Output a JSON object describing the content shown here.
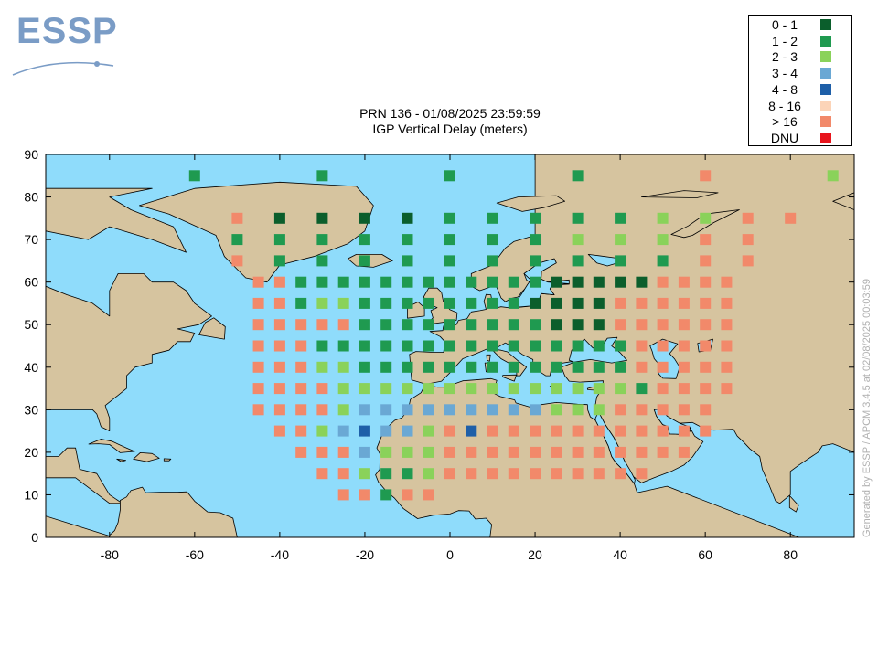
{
  "logo": {
    "text": "ESSP"
  },
  "title": "PRN 136 - 01/08/2025 23:59:59",
  "subtitle": "IGP Vertical Delay (meters)",
  "credit": "Generated by ESSP / APCM 3.4.5 at 02/08/2025 00:03:59",
  "colors": {
    "ocean": "#8fdcfb",
    "land": "#d6c49f",
    "cat1": "#0b5e2c",
    "cat2": "#1f9a50",
    "cat3": "#8ad25a",
    "cat4": "#6aa8d4",
    "cat5": "#1e5fa8",
    "cat6": "#fcd4b8",
    "cat7": "#f2896a",
    "cat8": "#e8141c"
  },
  "legend": [
    {
      "label": "0 - 1",
      "color": "#0b5e2c"
    },
    {
      "label": "1 - 2",
      "color": "#1f9a50"
    },
    {
      "label": "2 - 3",
      "color": "#8ad25a"
    },
    {
      "label": "3 - 4",
      "color": "#6aa8d4"
    },
    {
      "label": "4 - 8",
      "color": "#1e5fa8"
    },
    {
      "label": "8 - 16",
      "color": "#fcd4b8"
    },
    {
      "label": "> 16",
      "color": "#f2896a"
    },
    {
      "label": "DNU",
      "color": "#e8141c"
    }
  ],
  "chart_data": {
    "type": "scatter",
    "title": "PRN 136 - 01/08/2025 23:59:59",
    "subtitle": "IGP Vertical Delay (meters)",
    "xlim": [
      -95,
      95
    ],
    "ylim": [
      0,
      90
    ],
    "xticks": [
      -80,
      -60,
      -40,
      -20,
      0,
      20,
      40,
      60,
      80
    ],
    "yticks": [
      0,
      10,
      20,
      30,
      40,
      50,
      60,
      70,
      80,
      90
    ],
    "legend_position": "top-right",
    "rows": [
      {
        "lat": 85,
        "points": [
          [
            -60,
            2
          ],
          [
            -30,
            2
          ],
          [
            0,
            2
          ],
          [
            30,
            2
          ],
          [
            60,
            7
          ],
          [
            90,
            3
          ]
        ]
      },
      {
        "lat": 75,
        "points": [
          [
            -50,
            7
          ],
          [
            -40,
            1
          ],
          [
            -30,
            1
          ],
          [
            -20,
            1
          ],
          [
            -10,
            1
          ],
          [
            0,
            2
          ],
          [
            10,
            2
          ],
          [
            20,
            2
          ],
          [
            30,
            2
          ],
          [
            40,
            2
          ],
          [
            50,
            3
          ],
          [
            60,
            3
          ],
          [
            70,
            7
          ],
          [
            80,
            7
          ]
        ]
      },
      {
        "lat": 70,
        "points": [
          [
            -50,
            2
          ],
          [
            -40,
            2
          ],
          [
            -30,
            2
          ],
          [
            -20,
            2
          ],
          [
            -10,
            2
          ],
          [
            0,
            2
          ],
          [
            10,
            2
          ],
          [
            20,
            2
          ],
          [
            30,
            3
          ],
          [
            40,
            3
          ],
          [
            50,
            3
          ],
          [
            60,
            7
          ],
          [
            70,
            7
          ]
        ]
      },
      {
        "lat": 65,
        "points": [
          [
            -50,
            7
          ],
          [
            -40,
            2
          ],
          [
            -30,
            2
          ],
          [
            -20,
            2
          ],
          [
            -10,
            2
          ],
          [
            0,
            2
          ],
          [
            10,
            2
          ],
          [
            20,
            2
          ],
          [
            30,
            2
          ],
          [
            40,
            2
          ],
          [
            50,
            2
          ],
          [
            60,
            7
          ],
          [
            70,
            7
          ]
        ]
      },
      {
        "lat": 60,
        "points": [
          [
            -45,
            7
          ],
          [
            -40,
            7
          ],
          [
            -35,
            2
          ],
          [
            -30,
            2
          ],
          [
            -25,
            2
          ],
          [
            -20,
            2
          ],
          [
            -15,
            2
          ],
          [
            -10,
            2
          ],
          [
            -5,
            2
          ],
          [
            0,
            2
          ],
          [
            5,
            2
          ],
          [
            10,
            2
          ],
          [
            15,
            2
          ],
          [
            20,
            2
          ],
          [
            25,
            1
          ],
          [
            30,
            1
          ],
          [
            35,
            1
          ],
          [
            40,
            1
          ],
          [
            45,
            1
          ],
          [
            50,
            7
          ],
          [
            55,
            7
          ],
          [
            60,
            7
          ],
          [
            65,
            7
          ]
        ]
      },
      {
        "lat": 55,
        "points": [
          [
            -45,
            7
          ],
          [
            -40,
            7
          ],
          [
            -35,
            2
          ],
          [
            -30,
            3
          ],
          [
            -25,
            3
          ],
          [
            -20,
            2
          ],
          [
            -15,
            2
          ],
          [
            -10,
            2
          ],
          [
            -5,
            2
          ],
          [
            0,
            2
          ],
          [
            5,
            2
          ],
          [
            10,
            2
          ],
          [
            15,
            2
          ],
          [
            20,
            1
          ],
          [
            25,
            1
          ],
          [
            30,
            1
          ],
          [
            35,
            1
          ],
          [
            40,
            7
          ],
          [
            45,
            7
          ],
          [
            50,
            7
          ],
          [
            55,
            7
          ],
          [
            60,
            7
          ],
          [
            65,
            7
          ]
        ]
      },
      {
        "lat": 50,
        "points": [
          [
            -45,
            7
          ],
          [
            -40,
            7
          ],
          [
            -35,
            7
          ],
          [
            -30,
            7
          ],
          [
            -25,
            7
          ],
          [
            -20,
            2
          ],
          [
            -15,
            2
          ],
          [
            -10,
            2
          ],
          [
            -5,
            2
          ],
          [
            0,
            2
          ],
          [
            5,
            2
          ],
          [
            10,
            2
          ],
          [
            15,
            2
          ],
          [
            20,
            2
          ],
          [
            25,
            1
          ],
          [
            30,
            1
          ],
          [
            35,
            1
          ],
          [
            40,
            7
          ],
          [
            45,
            7
          ],
          [
            50,
            7
          ],
          [
            55,
            7
          ],
          [
            60,
            7
          ],
          [
            65,
            7
          ]
        ]
      },
      {
        "lat": 45,
        "points": [
          [
            -45,
            7
          ],
          [
            -40,
            7
          ],
          [
            -35,
            7
          ],
          [
            -30,
            2
          ],
          [
            -25,
            2
          ],
          [
            -20,
            2
          ],
          [
            -15,
            2
          ],
          [
            -10,
            2
          ],
          [
            -5,
            2
          ],
          [
            0,
            2
          ],
          [
            5,
            2
          ],
          [
            10,
            2
          ],
          [
            15,
            2
          ],
          [
            20,
            2
          ],
          [
            25,
            2
          ],
          [
            30,
            2
          ],
          [
            35,
            2
          ],
          [
            40,
            2
          ],
          [
            45,
            7
          ],
          [
            50,
            7
          ],
          [
            55,
            7
          ],
          [
            60,
            7
          ],
          [
            65,
            7
          ]
        ]
      },
      {
        "lat": 40,
        "points": [
          [
            -45,
            7
          ],
          [
            -40,
            7
          ],
          [
            -35,
            7
          ],
          [
            -30,
            3
          ],
          [
            -25,
            3
          ],
          [
            -20,
            2
          ],
          [
            -15,
            2
          ],
          [
            -10,
            2
          ],
          [
            -5,
            2
          ],
          [
            0,
            2
          ],
          [
            5,
            2
          ],
          [
            10,
            2
          ],
          [
            15,
            2
          ],
          [
            20,
            2
          ],
          [
            25,
            2
          ],
          [
            30,
            2
          ],
          [
            35,
            2
          ],
          [
            40,
            2
          ],
          [
            45,
            7
          ],
          [
            50,
            7
          ],
          [
            55,
            7
          ],
          [
            60,
            7
          ],
          [
            65,
            7
          ]
        ]
      },
      {
        "lat": 35,
        "points": [
          [
            -45,
            7
          ],
          [
            -40,
            7
          ],
          [
            -35,
            7
          ],
          [
            -30,
            7
          ],
          [
            -25,
            3
          ],
          [
            -20,
            3
          ],
          [
            -15,
            3
          ],
          [
            -10,
            3
          ],
          [
            -5,
            3
          ],
          [
            0,
            3
          ],
          [
            5,
            3
          ],
          [
            10,
            3
          ],
          [
            15,
            3
          ],
          [
            20,
            3
          ],
          [
            25,
            3
          ],
          [
            30,
            3
          ],
          [
            35,
            3
          ],
          [
            40,
            3
          ],
          [
            45,
            2
          ],
          [
            50,
            7
          ],
          [
            55,
            7
          ],
          [
            60,
            7
          ],
          [
            65,
            7
          ]
        ]
      },
      {
        "lat": 30,
        "points": [
          [
            -45,
            7
          ],
          [
            -40,
            7
          ],
          [
            -35,
            7
          ],
          [
            -30,
            7
          ],
          [
            -25,
            3
          ],
          [
            -20,
            4
          ],
          [
            -15,
            4
          ],
          [
            -10,
            4
          ],
          [
            -5,
            4
          ],
          [
            0,
            4
          ],
          [
            5,
            4
          ],
          [
            10,
            4
          ],
          [
            15,
            4
          ],
          [
            20,
            4
          ],
          [
            25,
            3
          ],
          [
            30,
            3
          ],
          [
            35,
            3
          ],
          [
            40,
            7
          ],
          [
            45,
            7
          ],
          [
            50,
            7
          ],
          [
            55,
            7
          ],
          [
            60,
            7
          ]
        ]
      },
      {
        "lat": 25,
        "points": [
          [
            -40,
            7
          ],
          [
            -35,
            7
          ],
          [
            -30,
            3
          ],
          [
            -25,
            4
          ],
          [
            -20,
            5
          ],
          [
            -15,
            4
          ],
          [
            -10,
            4
          ],
          [
            -5,
            3
          ],
          [
            0,
            7
          ],
          [
            5,
            5
          ],
          [
            10,
            7
          ],
          [
            15,
            7
          ],
          [
            20,
            7
          ],
          [
            25,
            7
          ],
          [
            30,
            7
          ],
          [
            35,
            7
          ],
          [
            40,
            7
          ],
          [
            45,
            7
          ],
          [
            50,
            7
          ],
          [
            55,
            7
          ],
          [
            60,
            7
          ]
        ]
      },
      {
        "lat": 20,
        "points": [
          [
            -35,
            7
          ],
          [
            -30,
            7
          ],
          [
            -25,
            7
          ],
          [
            -20,
            4
          ],
          [
            -15,
            3
          ],
          [
            -10,
            3
          ],
          [
            -5,
            3
          ],
          [
            0,
            7
          ],
          [
            5,
            7
          ],
          [
            10,
            7
          ],
          [
            15,
            7
          ],
          [
            20,
            7
          ],
          [
            25,
            7
          ],
          [
            30,
            7
          ],
          [
            35,
            7
          ],
          [
            40,
            7
          ],
          [
            45,
            7
          ],
          [
            50,
            7
          ],
          [
            55,
            7
          ]
        ]
      },
      {
        "lat": 15,
        "points": [
          [
            -30,
            7
          ],
          [
            -25,
            7
          ],
          [
            -20,
            3
          ],
          [
            -15,
            2
          ],
          [
            -10,
            2
          ],
          [
            -5,
            3
          ],
          [
            0,
            7
          ],
          [
            5,
            7
          ],
          [
            10,
            7
          ],
          [
            15,
            7
          ],
          [
            20,
            7
          ],
          [
            25,
            7
          ],
          [
            30,
            7
          ],
          [
            35,
            7
          ],
          [
            40,
            7
          ],
          [
            45,
            7
          ]
        ]
      },
      {
        "lat": 10,
        "points": [
          [
            -25,
            7
          ],
          [
            -20,
            7
          ],
          [
            -15,
            2
          ],
          [
            -10,
            7
          ],
          [
            -5,
            7
          ]
        ]
      }
    ]
  }
}
